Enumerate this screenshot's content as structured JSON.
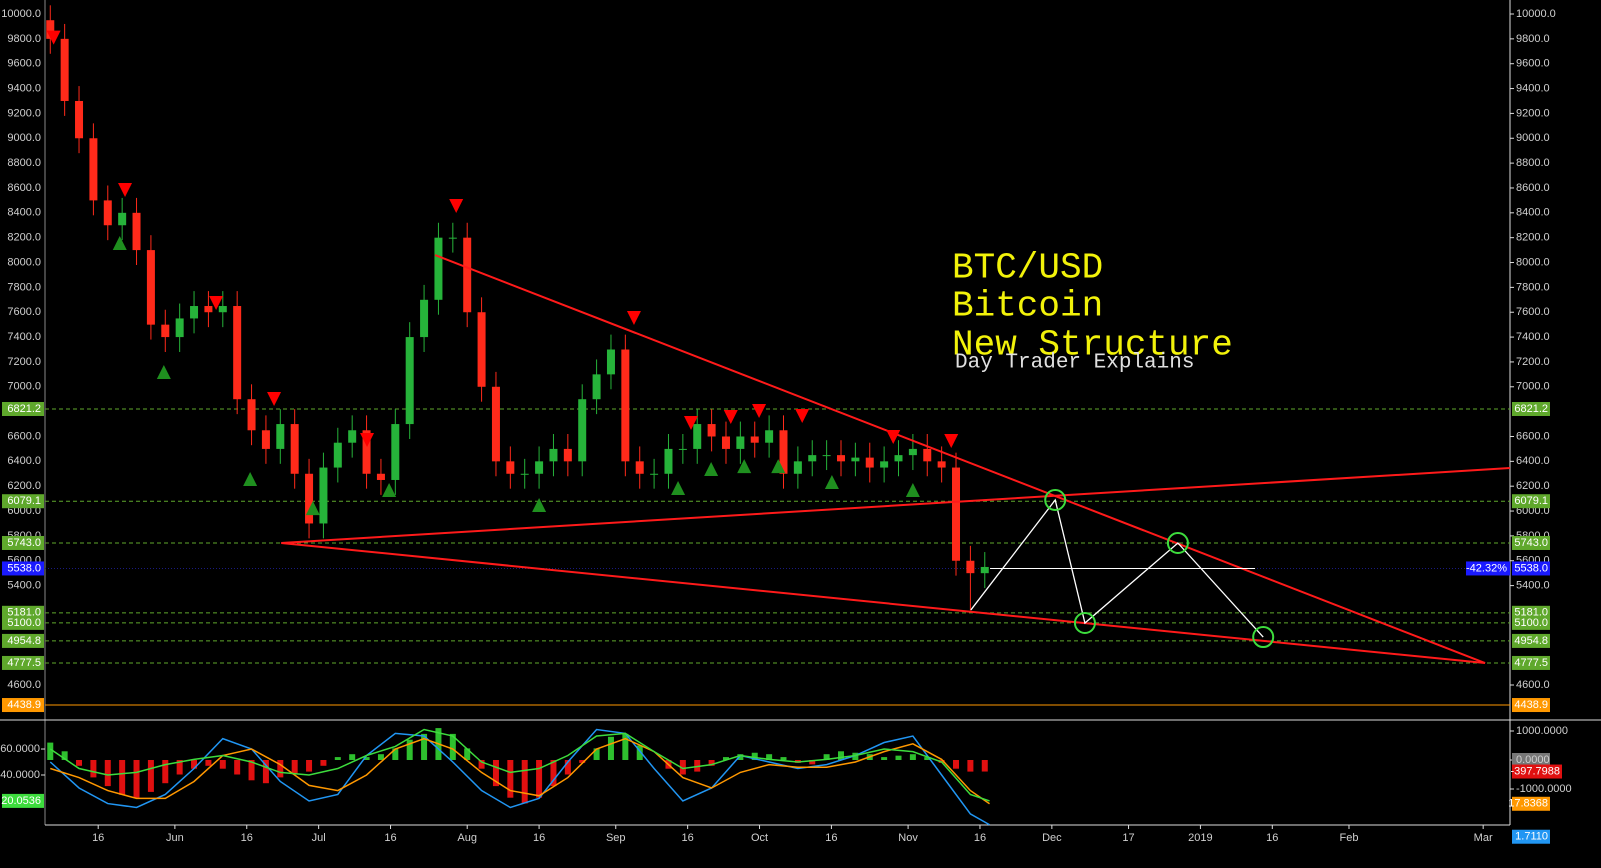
{
  "chart_data": [
    {
      "type": "candlestick",
      "title_lines": [
        "BTC/USD",
        "Bitcoin",
        "New Structure"
      ],
      "subtitle": "Day Trader Explains",
      "x": [
        126,
        129,
        132,
        135,
        138,
        141,
        144,
        147,
        150,
        153,
        156,
        159,
        162,
        165,
        168,
        171,
        174,
        177,
        180,
        183,
        186,
        189,
        192,
        195,
        198,
        201,
        204,
        207,
        210,
        213,
        216,
        219,
        222,
        225,
        228,
        231,
        234,
        237,
        240,
        243,
        246,
        249,
        252,
        255,
        258,
        261,
        264,
        267,
        270,
        273,
        276,
        279,
        282,
        285,
        288,
        291,
        294,
        297,
        300,
        303,
        306,
        309,
        312,
        315,
        318,
        321
      ],
      "open": [
        9950,
        9800,
        9300,
        9000,
        8500,
        8300,
        8400,
        8100,
        7500,
        7400,
        7550,
        7650,
        7600,
        7650,
        6900,
        6650,
        6500,
        6700,
        6300,
        5900,
        6350,
        6550,
        6650,
        6300,
        6250,
        6700,
        7400,
        7700,
        8200,
        8200,
        7600,
        7000,
        6400,
        6300,
        6300,
        6400,
        6500,
        6400,
        6900,
        7100,
        7300,
        6400,
        6300,
        6300,
        6500,
        6500,
        6700,
        6600,
        6500,
        6600,
        6550,
        6650,
        6300,
        6400,
        6450,
        6450,
        6400,
        6430,
        6350,
        6400,
        6450,
        6500,
        6400,
        6350,
        5600,
        5500
      ],
      "high": [
        10070,
        9920,
        9420,
        9120,
        8620,
        8520,
        8520,
        8220,
        7620,
        7670,
        7770,
        7770,
        7770,
        7770,
        7020,
        6770,
        6820,
        6820,
        6420,
        6470,
        6670,
        6770,
        6770,
        6420,
        6820,
        7520,
        7820,
        8320,
        8320,
        8320,
        7720,
        7120,
        6520,
        6420,
        6520,
        6620,
        6620,
        7020,
        7220,
        7420,
        7420,
        6520,
        6420,
        6620,
        6620,
        6820,
        6820,
        6720,
        6720,
        6720,
        6770,
        6770,
        6520,
        6570,
        6570,
        6570,
        6550,
        6550,
        6520,
        6570,
        6620,
        6620,
        6520,
        6470,
        5720,
        5670
      ],
      "low": [
        9680,
        9180,
        8880,
        8380,
        8180,
        8180,
        7980,
        7380,
        7280,
        7280,
        7430,
        7480,
        7480,
        6780,
        6530,
        6380,
        6380,
        6180,
        5780,
        5780,
        6230,
        6430,
        6180,
        6130,
        6130,
        6580,
        7280,
        7580,
        8080,
        7480,
        6880,
        6280,
        6180,
        6180,
        6180,
        6280,
        6280,
        6280,
        6780,
        6980,
        6280,
        6180,
        6180,
        6180,
        6380,
        6380,
        6480,
        6380,
        6380,
        6430,
        6430,
        6180,
        6180,
        6280,
        6330,
        6280,
        6280,
        6230,
        6230,
        6280,
        6330,
        6280,
        6230,
        5480,
        5200,
        5380
      ],
      "close": [
        9800,
        9300,
        9000,
        8500,
        8300,
        8400,
        8100,
        7500,
        7400,
        7550,
        7650,
        7600,
        7650,
        6900,
        6650,
        6500,
        6700,
        6300,
        5900,
        6350,
        6550,
        6650,
        6300,
        6250,
        6700,
        7400,
        7700,
        8200,
        8200,
        7600,
        7000,
        6400,
        6300,
        6300,
        6400,
        6500,
        6400,
        6900,
        7100,
        7300,
        6400,
        6300,
        6300,
        6500,
        6500,
        6700,
        6600,
        6500,
        6600,
        6550,
        6650,
        6300,
        6400,
        6450,
        6450,
        6400,
        6430,
        6350,
        6400,
        6450,
        6500,
        6400,
        6350,
        5600,
        5500,
        5550
      ],
      "up_color": "#26b33a",
      "down_color": "#ff2a1a",
      "xlim": [
        124.9,
        430.6
      ],
      "xticks": [
        {
          "value": 136,
          "label": "16"
        },
        {
          "value": 152,
          "label": "Jun"
        },
        {
          "value": 167,
          "label": "16"
        },
        {
          "value": 182,
          "label": "Jul"
        },
        {
          "value": 197,
          "label": "16"
        },
        {
          "value": 213,
          "label": "Aug"
        },
        {
          "value": 228,
          "label": "16"
        },
        {
          "value": 244,
          "label": "Sep"
        },
        {
          "value": 259,
          "label": "16"
        },
        {
          "value": 274,
          "label": "Oct"
        },
        {
          "value": 289,
          "label": "16"
        },
        {
          "value": 305,
          "label": "Nov"
        },
        {
          "value": 320,
          "label": "16"
        },
        {
          "value": 335,
          "label": "Dec"
        },
        {
          "value": 351,
          "label": "17"
        },
        {
          "value": 366,
          "label": "2019"
        },
        {
          "value": 381,
          "label": "16"
        },
        {
          "value": 397,
          "label": "Feb"
        },
        {
          "value": 425,
          "label": "Mar"
        }
      ],
      "ylim": [
        4334.5,
        10112.7
      ],
      "yticks": [
        {
          "value": 4600,
          "label": "4600.0"
        },
        {
          "value": 5400,
          "label": "5400.0"
        },
        {
          "value": 5600,
          "label": "5600.0"
        },
        {
          "value": 5800,
          "label": "5800.0"
        },
        {
          "value": 6000,
          "label": "6000.0"
        },
        {
          "value": 6200,
          "label": "6200.0"
        },
        {
          "value": 6400,
          "label": "6400.0"
        },
        {
          "value": 6600,
          "label": "6600.0"
        },
        {
          "value": 7000,
          "label": "7000.0"
        },
        {
          "value": 7200,
          "label": "7200.0"
        },
        {
          "value": 7400,
          "label": "7400.0"
        },
        {
          "value": 7600,
          "label": "7600.0"
        },
        {
          "value": 7800,
          "label": "7800.0"
        },
        {
          "value": 8000,
          "label": "8000.0"
        },
        {
          "value": 8200,
          "label": "8200.0"
        },
        {
          "value": 8400,
          "label": "8400.0"
        },
        {
          "value": 8600,
          "label": "8600.0"
        },
        {
          "value": 8800,
          "label": "8800.0"
        },
        {
          "value": 9000,
          "label": "9000.0"
        },
        {
          "value": 9200,
          "label": "9200.0"
        },
        {
          "value": 9400,
          "label": "9400.0"
        },
        {
          "value": 9600,
          "label": "9600.0"
        },
        {
          "value": 9800,
          "label": "9800.0"
        },
        {
          "value": 10000,
          "label": "10000.0"
        }
      ],
      "levels": [
        {
          "value": 6821.2,
          "label": "6821.2"
        },
        {
          "value": 6079.1,
          "label": "6079.1"
        },
        {
          "value": 5743.0,
          "label": "5743.0"
        },
        {
          "value": 5181.0,
          "label": "5181.0"
        },
        {
          "value": 5100.0,
          "label": "5100.0"
        },
        {
          "value": 4954.8,
          "label": "4954.8"
        },
        {
          "value": 4777.5,
          "label": "4777.5"
        }
      ],
      "level_color": "#5fa82c",
      "support": {
        "value": 4438.9,
        "label": "4438.9",
        "color": "#ff9800"
      },
      "current": {
        "value": 5538.0,
        "label": "5538.0",
        "change": "-42.32%",
        "color": "#1a1aff"
      },
      "trendline_color": "#ff1a1a",
      "trendlines": [
        {
          "x": [
            206.3,
            425.4
          ],
          "y": [
            8060,
            4777
          ]
        },
        {
          "x": [
            174.2,
            430.6
          ],
          "y": [
            5743,
            6346
          ]
        },
        {
          "x": [
            174.2,
            425.4
          ],
          "y": [
            5743,
            4777
          ]
        }
      ],
      "sell_signals": {
        "x": [
          126.7,
          141.6,
          160.6,
          172.7,
          192.1,
          210.7,
          247.8,
          259.7,
          268,
          273.9,
          282.9,
          301.9,
          314
        ],
        "y": [
          9810,
          8584,
          7674,
          6902,
          6572,
          8455,
          7554,
          6709,
          6757,
          6805,
          6765,
          6596,
          6564
        ]
      },
      "buy_signals": {
        "x": [
          140.5,
          149.7,
          167.7,
          180.8,
          196.7,
          228,
          257,
          263.9,
          270.8,
          277.9,
          289.1,
          306
        ],
        "y": [
          8157,
          7119,
          6258,
          6024,
          6169,
          6049,
          6185,
          6338,
          6362,
          6362,
          6234,
          6169
        ]
      },
      "projection": {
        "x": [
          318.1,
          335.7,
          341.9,
          361.3,
          379.1
        ],
        "y": [
          5204,
          6089,
          5099,
          5743,
          4986
        ]
      },
      "range_line": {
        "x": [
          322.1,
          377.4
        ]
      }
    },
    {
      "type": "line",
      "x": [
        126,
        132,
        138,
        144,
        150,
        156,
        162,
        168,
        174,
        180,
        186,
        192,
        198,
        204,
        210,
        216,
        222,
        228,
        234,
        240,
        246,
        252,
        258,
        264,
        270,
        276,
        282,
        288,
        294,
        300,
        306,
        312,
        318,
        322
      ],
      "series": [
        {
          "name": "fast",
          "color": "#2196f3",
          "label_side": "right",
          "last_label": "1.7110",
          "values": [
            50,
            30,
            18,
            15,
            25,
            45,
            68,
            60,
            35,
            20,
            25,
            55,
            72,
            70,
            50,
            28,
            15,
            22,
            50,
            75,
            72,
            45,
            20,
            30,
            55,
            50,
            45,
            48,
            55,
            65,
            70,
            40,
            10,
            1.711
          ]
        },
        {
          "name": "slow",
          "color": "#ff9800",
          "label_side": "right",
          "last_label": "17.8368",
          "values": [
            45,
            38,
            28,
            22,
            22,
            35,
            55,
            60,
            48,
            32,
            28,
            40,
            60,
            68,
            60,
            42,
            28,
            24,
            38,
            60,
            68,
            58,
            38,
            30,
            42,
            48,
            46,
            46,
            50,
            58,
            64,
            52,
            28,
            17.8368
          ]
        },
        {
          "name": "rsi",
          "color": "#3ddc3d",
          "label_side": "left",
          "last_label": "20.0536",
          "values": [
            60,
            45,
            40,
            42,
            48,
            52,
            55,
            50,
            42,
            40,
            45,
            55,
            62,
            75,
            70,
            50,
            42,
            45,
            55,
            70,
            72,
            58,
            45,
            48,
            55,
            52,
            50,
            52,
            55,
            60,
            58,
            50,
            25,
            20.0536
          ]
        }
      ],
      "histogram": {
        "axis": "y2",
        "up_color": "#2ec02e",
        "down_color": "#e01010",
        "last_label": "-397.7988",
        "values": [
          600,
          300,
          -200,
          -600,
          -900,
          -1200,
          -1300,
          -1100,
          -800,
          -500,
          -300,
          -200,
          -300,
          -500,
          -700,
          -800,
          -600,
          -500,
          -400,
          -200,
          100,
          200,
          100,
          200,
          400,
          700,
          900,
          1100,
          900,
          400,
          -300,
          -900,
          -1300,
          -1500,
          -1300,
          -900,
          -500,
          -100,
          400,
          800,
          900,
          500,
          0,
          -300,
          -500,
          -400,
          -200,
          100,
          200,
          250,
          200,
          100,
          -100,
          -150,
          200,
          300,
          250,
          200,
          100,
          150,
          200,
          100,
          -100,
          -300,
          -400,
          -397.7988
        ]
      },
      "ylim": [
        1.5,
        80.8
      ],
      "yticks": [
        {
          "value": 60,
          "label": "60.0000"
        },
        {
          "value": 40,
          "label": "40.0000"
        }
      ],
      "y2lim": [
        -2241,
        1310
      ],
      "y2ticks": [
        {
          "value": 1000,
          "label": "1000.0000"
        },
        {
          "value": 0,
          "label": "0.0000"
        },
        {
          "value": -1000,
          "label": "-1000.0000"
        }
      ]
    }
  ]
}
